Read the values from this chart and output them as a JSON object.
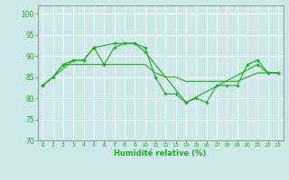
{
  "xlabel": "Humidité relative (%)",
  "background_color": "#cce8e8",
  "grid_color": "#ffffff",
  "line_color": "#22aa22",
  "ylim": [
    70,
    102
  ],
  "xlim": [
    -0.5,
    23.5
  ],
  "yticks": [
    70,
    75,
    80,
    85,
    90,
    95,
    100
  ],
  "xticks": [
    0,
    1,
    2,
    3,
    4,
    5,
    6,
    7,
    8,
    9,
    10,
    11,
    12,
    13,
    14,
    15,
    16,
    17,
    18,
    19,
    20,
    21,
    22,
    23
  ],
  "series": [
    {
      "x": [
        0,
        1,
        2,
        3,
        4,
        5,
        6,
        7,
        8,
        9,
        10,
        11,
        12,
        13,
        14,
        15,
        16,
        17,
        18,
        19,
        20,
        21,
        22,
        23
      ],
      "y": [
        83,
        85,
        88,
        89,
        89,
        92,
        88,
        92,
        93,
        93,
        92,
        85,
        81,
        81,
        79,
        80,
        79,
        83,
        83,
        83,
        88,
        89,
        86,
        86
      ]
    },
    {
      "x": [
        0,
        1,
        2,
        3,
        4,
        5,
        6,
        7,
        8,
        9,
        10,
        11,
        12,
        13,
        14,
        15,
        16,
        17,
        18,
        19,
        20,
        21,
        22,
        23
      ],
      "y": [
        83,
        85,
        88,
        88,
        88,
        88,
        88,
        88,
        88,
        88,
        88,
        86,
        85,
        85,
        84,
        84,
        84,
        84,
        84,
        84,
        85,
        86,
        86,
        86
      ]
    },
    {
      "x": [
        0,
        3,
        4,
        5,
        7,
        8,
        9,
        10,
        14,
        21,
        22,
        23
      ],
      "y": [
        83,
        89,
        89,
        92,
        93,
        93,
        93,
        91,
        79,
        88,
        86,
        86
      ]
    }
  ]
}
